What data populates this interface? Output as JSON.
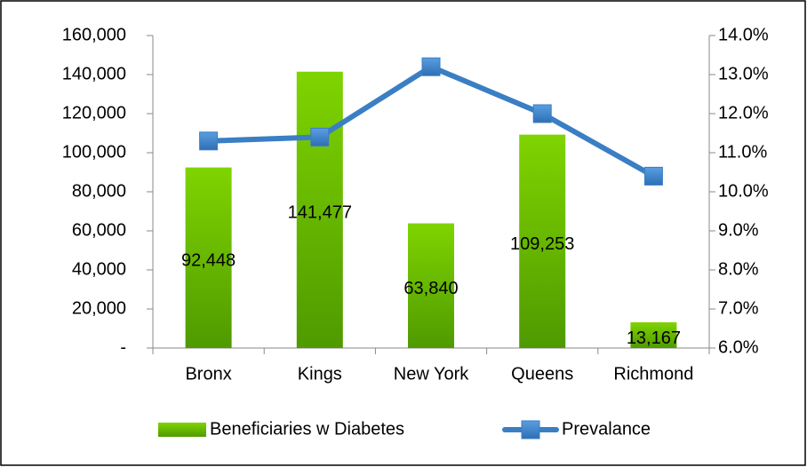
{
  "chart_data": {
    "type": "bar-line",
    "categories": [
      "Bronx",
      "Kings",
      "New York",
      "Queens",
      "Richmond"
    ],
    "series": [
      {
        "name": "Beneficiaries w Diabetes",
        "type": "bar",
        "color": "#66bb00",
        "values": [
          92448,
          141477,
          63840,
          109253,
          13167
        ],
        "value_labels": [
          "92,448",
          "141,477",
          "63,840",
          "109,253",
          "13,167"
        ]
      },
      {
        "name": "Prevalance",
        "type": "line",
        "axis": "y2",
        "color": "#3a7ec4",
        "values": [
          11.3,
          11.4,
          13.2,
          12.0,
          10.4
        ]
      }
    ],
    "ylim": [
      0,
      160000
    ],
    "yticks": [
      {
        "value": 0,
        "label": "-"
      },
      {
        "value": 20000,
        "label": "20,000"
      },
      {
        "value": 40000,
        "label": "40,000"
      },
      {
        "value": 60000,
        "label": "60,000"
      },
      {
        "value": 80000,
        "label": "80,000"
      },
      {
        "value": 100000,
        "label": "100,000"
      },
      {
        "value": 120000,
        "label": "120,000"
      },
      {
        "value": 140000,
        "label": "140,000"
      },
      {
        "value": 160000,
        "label": "160,000"
      }
    ],
    "y2lim": [
      6,
      14
    ],
    "y2ticks": [
      {
        "value": 6,
        "label": "6.0%"
      },
      {
        "value": 7,
        "label": "7.0%"
      },
      {
        "value": 8,
        "label": "8.0%"
      },
      {
        "value": 9,
        "label": "9.0%"
      },
      {
        "value": 10,
        "label": "10.0%"
      },
      {
        "value": 11,
        "label": "11.0%"
      },
      {
        "value": 12,
        "label": "12.0%"
      },
      {
        "value": 13,
        "label": "13.0%"
      },
      {
        "value": 14,
        "label": "14.0%"
      }
    ],
    "legend": "bottom"
  }
}
